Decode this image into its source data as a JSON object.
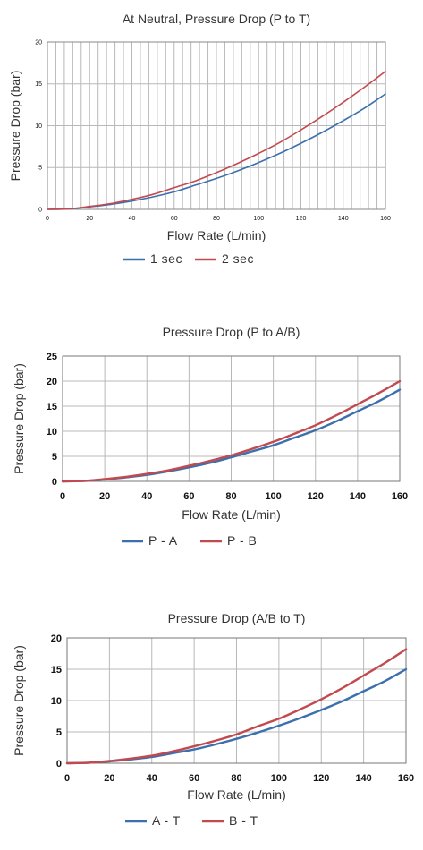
{
  "colors": {
    "blue": "#3b6fae",
    "red": "#c24a4f",
    "grid": "#b8b8b8"
  },
  "chart_data": [
    {
      "type": "line",
      "title": "At Neutral, Pressure Drop (P to T)",
      "xlabel": "Flow Rate (L/min)",
      "ylabel": "Pressure Drop (bar)",
      "xlim": [
        0,
        160
      ],
      "ylim": [
        0,
        20
      ],
      "xticks": [
        0,
        20,
        40,
        60,
        80,
        100,
        120,
        140,
        160
      ],
      "yticks": [
        0,
        5,
        10,
        15,
        20
      ],
      "grid": "dense vertical gridlines every 4 L/min, horizontal every 5 bar",
      "legend": "bottom",
      "series": [
        {
          "name": "1 sec",
          "color": "#3b6fae",
          "x": [
            0,
            10,
            20,
            30,
            40,
            50,
            60,
            70,
            80,
            90,
            100,
            110,
            120,
            130,
            140,
            150,
            160
          ],
          "values": [
            0,
            0.05,
            0.3,
            0.6,
            1.0,
            1.5,
            2.1,
            2.9,
            3.7,
            4.6,
            5.6,
            6.7,
            7.9,
            9.2,
            10.6,
            12.1,
            13.8
          ]
        },
        {
          "name": "2 sec",
          "color": "#c24a4f",
          "x": [
            0,
            10,
            20,
            30,
            40,
            50,
            60,
            70,
            80,
            90,
            100,
            110,
            120,
            130,
            140,
            150,
            160
          ],
          "values": [
            0,
            0.06,
            0.35,
            0.7,
            1.2,
            1.8,
            2.6,
            3.4,
            4.4,
            5.5,
            6.7,
            8.0,
            9.5,
            11.1,
            12.8,
            14.6,
            16.5
          ]
        }
      ]
    },
    {
      "type": "line",
      "title": "Pressure Drop (P to A/B)",
      "xlabel": "Flow Rate (L/min)",
      "ylabel": "Pressure Drop (bar)",
      "xlim": [
        0,
        160
      ],
      "ylim": [
        0,
        25
      ],
      "xticks": [
        0,
        20,
        40,
        60,
        80,
        100,
        120,
        140,
        160
      ],
      "yticks": [
        0,
        5,
        10,
        15,
        20,
        25
      ],
      "grid": "gridlines every 20 L/min and 5 bar",
      "legend": "bottom",
      "series": [
        {
          "name": "P - A",
          "color": "#3b6fae",
          "x": [
            0,
            10,
            20,
            30,
            40,
            50,
            60,
            70,
            80,
            90,
            100,
            110,
            120,
            130,
            140,
            150,
            160
          ],
          "values": [
            0,
            0.08,
            0.4,
            0.8,
            1.3,
            2.0,
            2.8,
            3.7,
            4.8,
            6.0,
            7.2,
            8.7,
            10.2,
            12.0,
            14.0,
            16.0,
            18.3
          ]
        },
        {
          "name": "P - B",
          "color": "#c24a4f",
          "x": [
            0,
            10,
            20,
            30,
            40,
            50,
            60,
            70,
            80,
            90,
            100,
            110,
            120,
            130,
            140,
            150,
            160
          ],
          "values": [
            0,
            0.1,
            0.45,
            0.9,
            1.5,
            2.2,
            3.1,
            4.1,
            5.2,
            6.5,
            7.9,
            9.5,
            11.2,
            13.2,
            15.4,
            17.6,
            20.0
          ]
        }
      ]
    },
    {
      "type": "line",
      "title": "Pressure Drop (A/B to T)",
      "xlabel": "Flow Rate (L/min)",
      "ylabel": "Pressure Drop (bar)",
      "xlim": [
        0,
        160
      ],
      "ylim": [
        0,
        20
      ],
      "xticks": [
        0,
        20,
        40,
        60,
        80,
        100,
        120,
        140,
        160
      ],
      "yticks": [
        0,
        5,
        10,
        15,
        20
      ],
      "grid": "gridlines every 20 L/min and 5 bar",
      "legend": "bottom",
      "series": [
        {
          "name": "A - T",
          "color": "#3b6fae",
          "x": [
            0,
            10,
            20,
            30,
            40,
            50,
            60,
            70,
            80,
            90,
            100,
            110,
            120,
            130,
            140,
            150,
            160
          ],
          "values": [
            0,
            0.06,
            0.3,
            0.6,
            1.0,
            1.6,
            2.2,
            3.0,
            3.9,
            4.9,
            6.0,
            7.2,
            8.5,
            9.9,
            11.5,
            13.1,
            15.0
          ]
        },
        {
          "name": "B - T",
          "color": "#c24a4f",
          "x": [
            0,
            10,
            20,
            30,
            40,
            50,
            60,
            70,
            80,
            90,
            100,
            110,
            120,
            130,
            140,
            150,
            160
          ],
          "values": [
            0,
            0.08,
            0.35,
            0.75,
            1.2,
            1.9,
            2.7,
            3.6,
            4.6,
            5.9,
            7.1,
            8.6,
            10.2,
            12.0,
            14.0,
            16.0,
            18.2
          ]
        }
      ]
    }
  ]
}
